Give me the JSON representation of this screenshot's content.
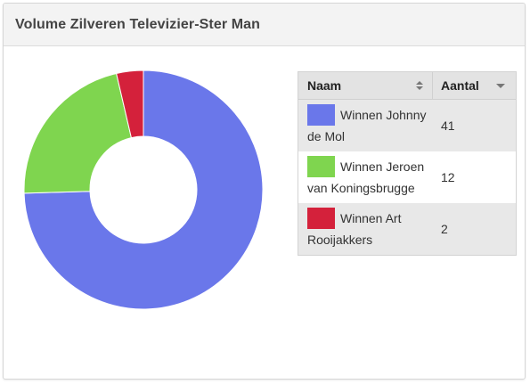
{
  "header": {
    "title": "Volume Zilveren Televizier-Ster Man"
  },
  "legend": {
    "col_name": "Naam",
    "col_count": "Aantal",
    "sort_name_icon": "sort-both-icon",
    "sort_count_icon": "sort-desc-icon"
  },
  "chart_data": {
    "type": "pie",
    "title": "Volume Zilveren Televizier-Ster Man",
    "donut": true,
    "categories": [
      "Winnen Johnny de Mol",
      "Winnen Jeroen van Koningsbrugge",
      "Winnen Art Rooijakkers"
    ],
    "values": [
      41,
      12,
      2
    ],
    "colors": [
      "#6a77ea",
      "#7fd54f",
      "#d4213b"
    ],
    "legend_position": "right"
  }
}
